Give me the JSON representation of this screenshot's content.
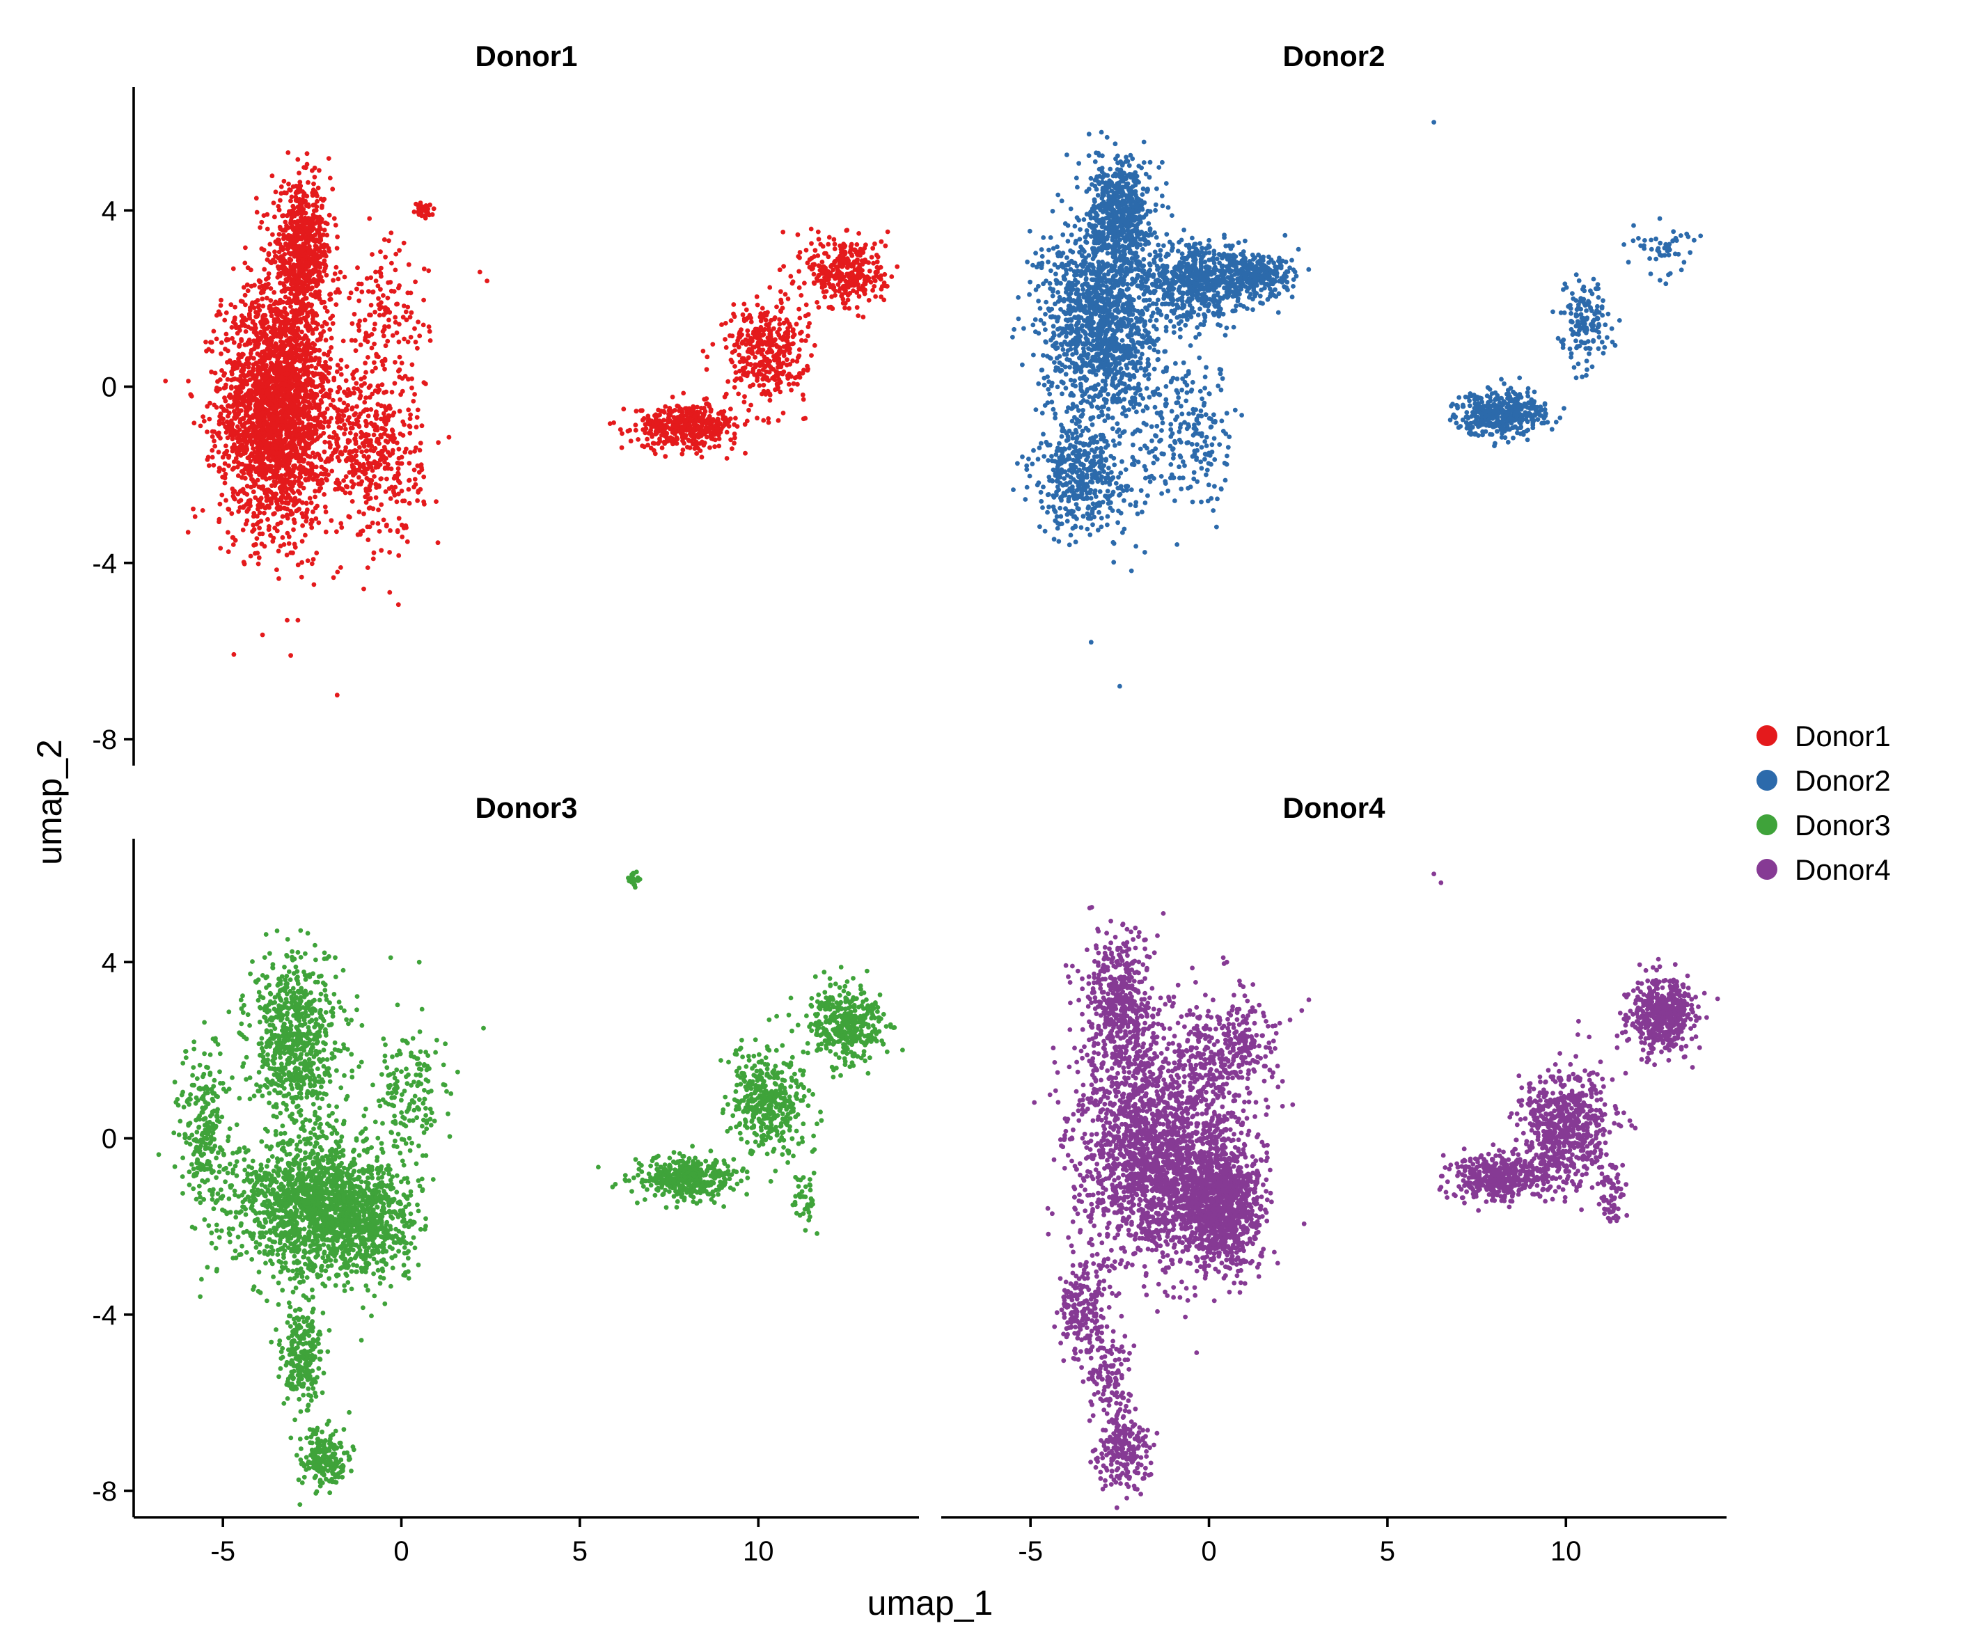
{
  "chart_data": {
    "type": "scatter",
    "layout": "facet-grid-2x2",
    "xlabel": "umap_1",
    "ylabel": "umap_2",
    "xlim": [
      -7.5,
      14.5
    ],
    "ylim": [
      -8.6,
      6.8
    ],
    "x_ticks": [
      -5,
      0,
      5,
      10
    ],
    "y_ticks": [
      -8,
      -4,
      0,
      4
    ],
    "legend_position": "right",
    "grid": false,
    "panels": [
      {
        "title": "Donor1",
        "color": "#E41A1C",
        "clusters": [
          {
            "cx": -3.5,
            "cy": -0.5,
            "sx": 1.1,
            "sy": 1.9,
            "n": 2600
          },
          {
            "cx": -2.8,
            "cy": 3.0,
            "sx": 0.6,
            "sy": 1.1,
            "n": 700
          },
          {
            "cx": -0.8,
            "cy": -1.5,
            "sx": 1.0,
            "sy": 1.4,
            "n": 450
          },
          {
            "cx": -0.5,
            "cy": 1.5,
            "sx": 0.9,
            "sy": 1.2,
            "n": 150
          },
          {
            "cx": 0.6,
            "cy": 4.0,
            "sx": 0.15,
            "sy": 0.1,
            "n": 40
          },
          {
            "cx": 8.0,
            "cy": -0.9,
            "sx": 1.0,
            "sy": 0.35,
            "n": 450
          },
          {
            "cx": 10.2,
            "cy": 0.8,
            "sx": 0.8,
            "sy": 0.8,
            "n": 380
          },
          {
            "cx": 12.5,
            "cy": 2.6,
            "sx": 0.8,
            "sy": 0.6,
            "n": 330
          }
        ],
        "outliers": [
          [
            -3.2,
            -5.3
          ],
          [
            -2.9,
            -5.3
          ],
          [
            -3.1,
            -6.1
          ],
          [
            -1.8,
            -7.0
          ],
          [
            2.2,
            2.6
          ],
          [
            2.4,
            2.4
          ]
        ]
      },
      {
        "title": "Donor2",
        "color": "#2C6AAB",
        "clusters": [
          {
            "cx": -3.0,
            "cy": 1.5,
            "sx": 1.2,
            "sy": 1.6,
            "n": 1400
          },
          {
            "cx": -2.5,
            "cy": 4.0,
            "sx": 0.6,
            "sy": 0.8,
            "n": 550
          },
          {
            "cx": -3.5,
            "cy": -2.0,
            "sx": 1.0,
            "sy": 1.0,
            "n": 450
          },
          {
            "cx": -0.2,
            "cy": 2.4,
            "sx": 1.2,
            "sy": 0.6,
            "n": 650
          },
          {
            "cx": 1.5,
            "cy": 2.5,
            "sx": 0.6,
            "sy": 0.3,
            "n": 200
          },
          {
            "cx": -0.5,
            "cy": -1.2,
            "sx": 1.0,
            "sy": 1.2,
            "n": 220
          },
          {
            "cx": 8.2,
            "cy": -0.6,
            "sx": 0.9,
            "sy": 0.35,
            "n": 420
          },
          {
            "cx": 10.5,
            "cy": 1.4,
            "sx": 0.5,
            "sy": 0.7,
            "n": 150
          },
          {
            "cx": 12.8,
            "cy": 3.2,
            "sx": 0.6,
            "sy": 0.4,
            "n": 50
          }
        ],
        "outliers": [
          [
            6.3,
            6.0
          ],
          [
            -3.3,
            -5.8
          ],
          [
            -2.5,
            -6.8
          ],
          [
            -1.5,
            4.0
          ],
          [
            -1.3,
            4.1
          ]
        ]
      },
      {
        "title": "Donor3",
        "color": "#3FA33A",
        "clusters": [
          {
            "cx": -2.5,
            "cy": -1.5,
            "sx": 1.5,
            "sy": 1.2,
            "n": 1400
          },
          {
            "cx": -3.0,
            "cy": 2.2,
            "sx": 0.9,
            "sy": 1.3,
            "n": 700
          },
          {
            "cx": -1.0,
            "cy": -1.8,
            "sx": 1.0,
            "sy": 0.9,
            "n": 600
          },
          {
            "cx": -2.8,
            "cy": -5.0,
            "sx": 0.4,
            "sy": 0.9,
            "n": 250
          },
          {
            "cx": -2.2,
            "cy": -7.3,
            "sx": 0.5,
            "sy": 0.5,
            "n": 200
          },
          {
            "cx": -5.5,
            "cy": 0.0,
            "sx": 0.5,
            "sy": 1.5,
            "n": 250
          },
          {
            "cx": 0.3,
            "cy": 1.0,
            "sx": 0.8,
            "sy": 1.0,
            "n": 150
          },
          {
            "cx": 8.0,
            "cy": -0.9,
            "sx": 1.0,
            "sy": 0.35,
            "n": 420
          },
          {
            "cx": 10.3,
            "cy": 0.8,
            "sx": 0.8,
            "sy": 0.8,
            "n": 400
          },
          {
            "cx": 12.5,
            "cy": 2.6,
            "sx": 0.8,
            "sy": 0.6,
            "n": 380
          },
          {
            "cx": 11.3,
            "cy": -1.4,
            "sx": 0.2,
            "sy": 0.4,
            "n": 40
          },
          {
            "cx": 6.5,
            "cy": 5.9,
            "sx": 0.1,
            "sy": 0.1,
            "n": 25
          }
        ],
        "outliers": [
          [
            0.5,
            4.0
          ],
          [
            -0.3,
            4.1
          ],
          [
            2.3,
            2.5
          ]
        ]
      },
      {
        "title": "Donor4",
        "color": "#863A94",
        "clusters": [
          {
            "cx": -1.5,
            "cy": -0.3,
            "sx": 1.6,
            "sy": 1.8,
            "n": 2000
          },
          {
            "cx": 0.3,
            "cy": -1.5,
            "sx": 0.8,
            "sy": 1.0,
            "n": 1100
          },
          {
            "cx": -2.5,
            "cy": 3.0,
            "sx": 0.7,
            "sy": 1.2,
            "n": 500
          },
          {
            "cx": -3.5,
            "cy": -4.0,
            "sx": 0.5,
            "sy": 0.8,
            "n": 200
          },
          {
            "cx": -2.4,
            "cy": -7.2,
            "sx": 0.5,
            "sy": 0.6,
            "n": 200
          },
          {
            "cx": -2.8,
            "cy": -5.5,
            "sx": 0.4,
            "sy": 0.8,
            "n": 120
          },
          {
            "cx": 0.5,
            "cy": 2.0,
            "sx": 1.0,
            "sy": 0.9,
            "n": 300
          },
          {
            "cx": 8.2,
            "cy": -0.9,
            "sx": 1.0,
            "sy": 0.4,
            "n": 450
          },
          {
            "cx": 10.0,
            "cy": 0.3,
            "sx": 0.9,
            "sy": 0.9,
            "n": 600
          },
          {
            "cx": 12.7,
            "cy": 2.8,
            "sx": 0.6,
            "sy": 0.6,
            "n": 500
          },
          {
            "cx": 11.3,
            "cy": -1.2,
            "sx": 0.25,
            "sy": 0.5,
            "n": 60
          }
        ],
        "outliers": [
          [
            6.3,
            6.0
          ],
          [
            6.5,
            5.8
          ],
          [
            0.5,
            4.0
          ],
          [
            0.4,
            4.1
          ]
        ]
      }
    ],
    "legend": [
      {
        "label": "Donor1",
        "color": "#E41A1C"
      },
      {
        "label": "Donor2",
        "color": "#2C6AAB"
      },
      {
        "label": "Donor3",
        "color": "#3FA33A"
      },
      {
        "label": "Donor4",
        "color": "#863A94"
      }
    ]
  }
}
